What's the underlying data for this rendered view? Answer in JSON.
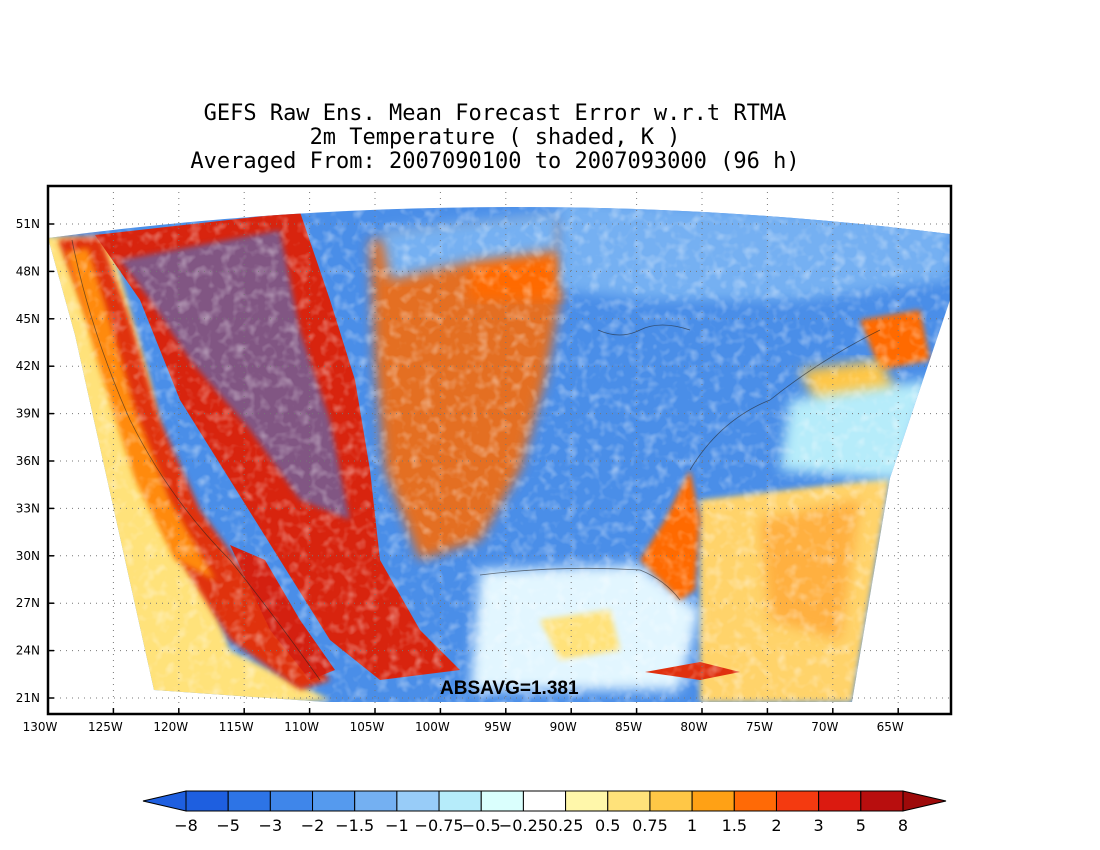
{
  "title": {
    "line1": "GEFS Raw Ens. Mean Forecast Error w.r.t RTMA",
    "line2": "2m Temperature ( shaded, K )",
    "line3": "Averaged From: 2007090100 to 2007093000 (96 h)"
  },
  "annotation": "ABSAVG=1.381",
  "lat_labels": [
    "51N",
    "48N",
    "45N",
    "42N",
    "39N",
    "36N",
    "33N",
    "30N",
    "27N",
    "24N",
    "21N"
  ],
  "lon_labels": [
    "130W",
    "125W",
    "120W",
    "115W",
    "110W",
    "105W",
    "100W",
    "95W",
    "90W",
    "85W",
    "80W",
    "75W",
    "70W",
    "65W"
  ],
  "colorbar": {
    "labels": [
      "-8",
      "-5",
      "-3",
      "-2",
      "-1.5",
      "-1",
      "-0.75",
      "-0.5",
      "-0.25",
      "0.25",
      "0.5",
      "0.75",
      "1",
      "1.5",
      "2",
      "3",
      "5",
      "8"
    ],
    "colors": [
      "#1e5fe0",
      "#2d74e6",
      "#3f86ea",
      "#559aee",
      "#74b0f2",
      "#98ccf8",
      "#b6ecfa",
      "#dafffd",
      "#ffffff",
      "#fff7aa",
      "#ffe27a",
      "#ffc746",
      "#ffa115",
      "#ff6a06",
      "#f43a10",
      "#db1a10",
      "#b80e0e"
    ],
    "under_color": "#1e5fe0",
    "over_color": "#9e0a0a"
  },
  "colors": {
    "ocean_west": "#ffe27a",
    "coast_red": "#e0300e",
    "cold_blue": "#4a8ee8",
    "warm_orange": "#ff7a1a",
    "atlantic_yellow": "#ffd36a",
    "gulf_pale": "#e2f6ff"
  }
}
